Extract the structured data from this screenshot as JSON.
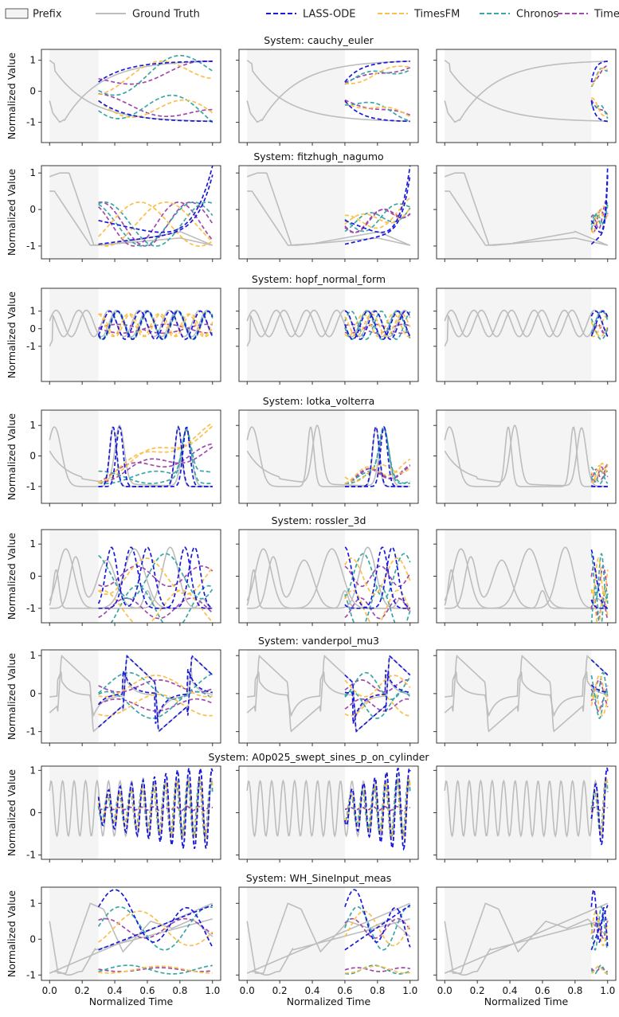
{
  "figure": {
    "legend": [
      {
        "label": "Prefix",
        "kind": "box",
        "color": "#f4f4f4"
      },
      {
        "label": "Ground Truth",
        "kind": "solid",
        "color": "#bdbdbd"
      },
      {
        "label": "LASS-ODE",
        "kind": "dashed",
        "color": "#1a1adb"
      },
      {
        "label": "TimesFM",
        "kind": "dashed",
        "color": "#fbbf4a"
      },
      {
        "label": "Chronos",
        "kind": "dashed",
        "color": "#3aa6a6"
      },
      {
        "label": "Timer-XL",
        "kind": "dashed",
        "color": "#a04aab"
      }
    ],
    "xlabel": "Normalized Time",
    "ylabel": "Normalized Value",
    "columns_prefix_end": [
      0.3,
      0.6,
      0.9
    ]
  },
  "chart_data": [
    {
      "type": "line",
      "system": "cauchy_euler",
      "title": "System: cauchy_euler",
      "xlim": [
        -0.05,
        1.05
      ],
      "ylim": [
        -1.65,
        1.35
      ],
      "yticks": [
        -1,
        0,
        1
      ],
      "xticks": [
        0.0,
        0.2,
        0.4,
        0.6,
        0.8,
        1.0
      ]
    },
    {
      "type": "line",
      "system": "fitzhugh_nagumo",
      "title": "System: fitzhugh_nagumo",
      "xlim": [
        -0.05,
        1.05
      ],
      "ylim": [
        -1.35,
        1.2
      ],
      "yticks": [
        -1,
        0,
        1
      ],
      "xticks": [
        0.0,
        0.2,
        0.4,
        0.6,
        0.8,
        1.0
      ]
    },
    {
      "type": "line",
      "system": "hopf_normal_form",
      "title": "System: hopf_normal_form",
      "xlim": [
        -0.05,
        1.05
      ],
      "ylim": [
        -3.0,
        2.3
      ],
      "yticks": [
        -1,
        0,
        1
      ],
      "xticks": [
        0.0,
        0.2,
        0.4,
        0.6,
        0.8,
        1.0
      ]
    },
    {
      "type": "line",
      "system": "lotka_volterra",
      "title": "System: lotka_volterra",
      "xlim": [
        -0.05,
        1.05
      ],
      "ylim": [
        -1.55,
        1.5
      ],
      "yticks": [
        -1,
        0,
        1
      ],
      "xticks": [
        0.0,
        0.2,
        0.4,
        0.6,
        0.8,
        1.0
      ]
    },
    {
      "type": "line",
      "system": "rossler_3d",
      "title": "System: rossler_3d",
      "xlim": [
        -0.05,
        1.05
      ],
      "ylim": [
        -1.45,
        1.45
      ],
      "yticks": [
        -1,
        0,
        1
      ],
      "xticks": [
        0.0,
        0.2,
        0.4,
        0.6,
        0.8,
        1.0
      ]
    },
    {
      "type": "line",
      "system": "vanderpol_mu3",
      "title": "System: vanderpol_mu3",
      "xlim": [
        -0.05,
        1.05
      ],
      "ylim": [
        -1.3,
        1.15
      ],
      "yticks": [
        -1,
        0,
        1
      ],
      "xticks": [
        0.0,
        0.2,
        0.4,
        0.6,
        0.8,
        1.0
      ]
    },
    {
      "type": "line",
      "system": "A0p025_swept_sines_p_on_cylinder",
      "title": "System: A0p025_swept_sines_p_on_cylinder",
      "xlim": [
        -0.05,
        1.05
      ],
      "ylim": [
        -1.1,
        1.1
      ],
      "yticks": [
        -1,
        0,
        1
      ],
      "xticks": [
        0.0,
        0.2,
        0.4,
        0.6,
        0.8,
        1.0
      ]
    },
    {
      "type": "line",
      "system": "WH_SineInput_meas",
      "title": "System: WH_SineInput_meas",
      "xlim": [
        -0.05,
        1.05
      ],
      "ylim": [
        -1.15,
        1.45
      ],
      "yticks": [
        -1,
        0,
        1
      ],
      "xticks": [
        0.0,
        0.2,
        0.4,
        0.6,
        0.8,
        1.0
      ]
    }
  ]
}
